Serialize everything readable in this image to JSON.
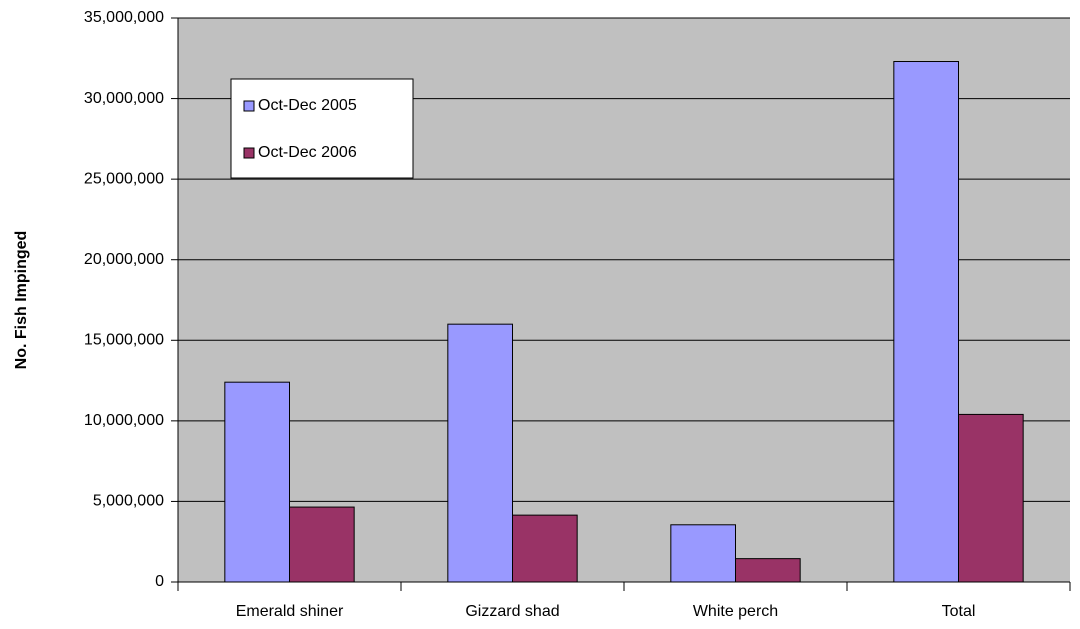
{
  "chart_data": {
    "type": "bar",
    "y_label": "No. Fish Impinged",
    "categories": [
      "Emerald shiner",
      "Gizzard shad",
      "White perch",
      "Total"
    ],
    "series": [
      {
        "name": "Oct-Dec 2005",
        "color": "#9999ff",
        "values": [
          12400000,
          16000000,
          3550000,
          32300000
        ]
      },
      {
        "name": "Oct-Dec 2006",
        "color": "#993366",
        "values": [
          4650000,
          4150000,
          1450000,
          10400000
        ]
      }
    ],
    "ylim": [
      0,
      35000000
    ],
    "yticks": [
      0,
      {
        "value": 5000000,
        "label": "5,000,000"
      },
      {
        "value": 10000000,
        "label": "10,000,000"
      },
      {
        "value": 15000000,
        "label": "15,000,000"
      },
      {
        "value": 20000000,
        "label": "20,000,000"
      },
      {
        "value": 25000000,
        "label": "25,000,000"
      },
      {
        "value": 30000000,
        "label": "30,000,000"
      },
      {
        "value": 35000000,
        "label": "35,000,000"
      }
    ],
    "grid": true,
    "legend": "upper-left",
    "plot_background": "#c0c0c0"
  }
}
